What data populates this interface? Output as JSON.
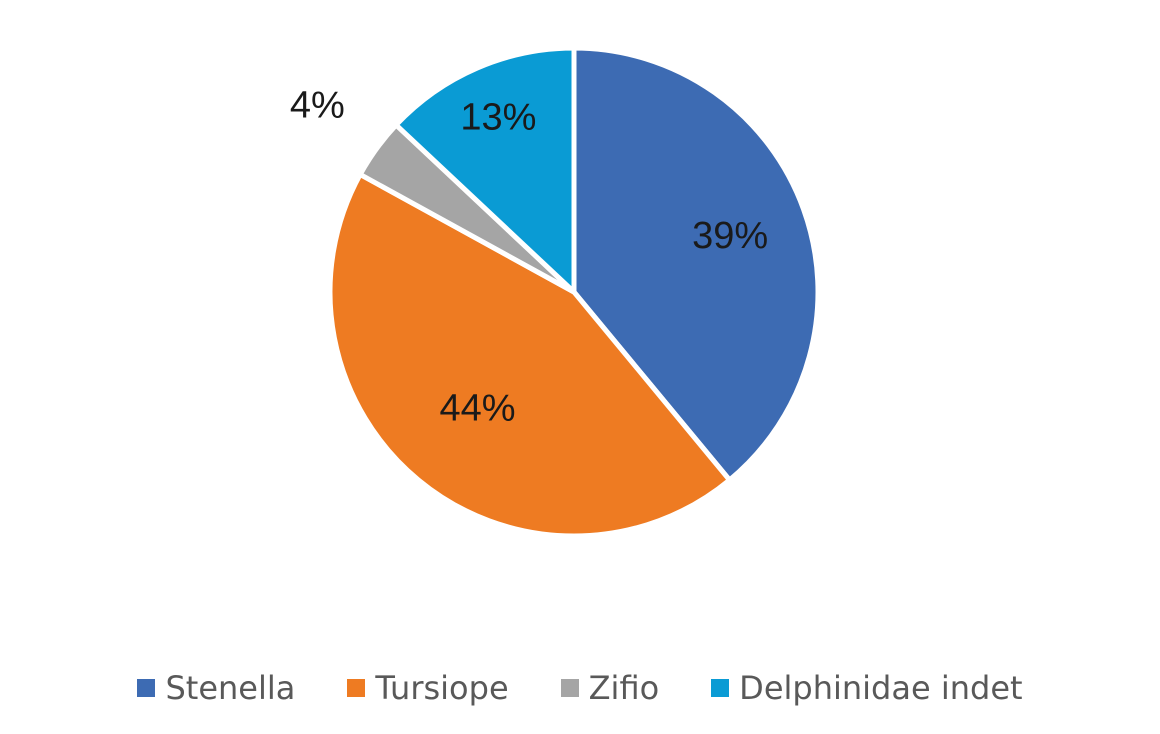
{
  "chart_data": {
    "type": "pie",
    "title": "",
    "categories": [
      "Stenella",
      "Tursiope",
      "Zifio",
      "Delphinidae indet"
    ],
    "values": [
      39,
      44,
      4,
      13
    ],
    "labels": [
      "39%",
      "44%",
      "4%",
      "13%"
    ],
    "colors": [
      "#3d6bb3",
      "#ee7b22",
      "#a5a5a5",
      "#0a9bd4"
    ],
    "start_angle_deg": 0,
    "direction": "clockwise",
    "legend_position": "bottom"
  }
}
